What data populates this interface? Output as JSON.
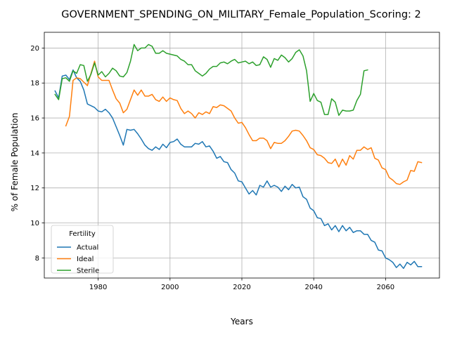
{
  "chart_data": {
    "type": "line",
    "title": "GOVERNMENT_SPENDING_ON_MILITARY_Female_Population_Scoring: 2",
    "xlabel": "Years",
    "ylabel": "% of Female Population",
    "xlim": [
      1965,
      2075
    ],
    "ylim": [
      6.85,
      20.9
    ],
    "xticks": [
      1980,
      2000,
      2020,
      2040,
      2060
    ],
    "yticks": [
      8,
      10,
      12,
      14,
      16,
      18,
      20
    ],
    "grid": true,
    "legend": {
      "title": "Fertility",
      "placement": "lower-left"
    },
    "series": [
      {
        "name": "Actual",
        "color": "#1f77b4",
        "points": [
          [
            1968,
            17.55
          ],
          [
            1969,
            17.15
          ],
          [
            1970,
            18.4
          ],
          [
            1971,
            18.45
          ],
          [
            1972,
            18.2
          ],
          [
            1973,
            18.75
          ],
          [
            1974,
            18.3
          ],
          [
            1975,
            18.1
          ],
          [
            1976,
            17.6
          ],
          [
            1977,
            16.8
          ],
          [
            1978,
            16.7
          ],
          [
            1979,
            16.6
          ],
          [
            1980,
            16.4
          ],
          [
            1981,
            16.35
          ],
          [
            1982,
            16.5
          ],
          [
            1983,
            16.3
          ],
          [
            1984,
            16.0
          ],
          [
            1985,
            15.5
          ],
          [
            1986,
            15.0
          ],
          [
            1987,
            14.45
          ],
          [
            1988,
            15.35
          ],
          [
            1989,
            15.3
          ],
          [
            1990,
            15.35
          ],
          [
            1991,
            15.1
          ],
          [
            1992,
            14.8
          ],
          [
            1993,
            14.45
          ],
          [
            1994,
            14.25
          ],
          [
            1995,
            14.15
          ],
          [
            1996,
            14.35
          ],
          [
            1997,
            14.2
          ],
          [
            1998,
            14.5
          ],
          [
            1999,
            14.3
          ],
          [
            2000,
            14.6
          ],
          [
            2001,
            14.65
          ],
          [
            2002,
            14.8
          ],
          [
            2003,
            14.5
          ],
          [
            2004,
            14.35
          ],
          [
            2005,
            14.35
          ],
          [
            2006,
            14.35
          ],
          [
            2007,
            14.55
          ],
          [
            2008,
            14.5
          ],
          [
            2009,
            14.65
          ],
          [
            2010,
            14.35
          ],
          [
            2011,
            14.4
          ],
          [
            2012,
            14.1
          ],
          [
            2013,
            13.7
          ],
          [
            2014,
            13.8
          ],
          [
            2015,
            13.5
          ],
          [
            2016,
            13.45
          ],
          [
            2017,
            13.05
          ],
          [
            2018,
            12.85
          ],
          [
            2019,
            12.4
          ],
          [
            2020,
            12.35
          ],
          [
            2021,
            12.0
          ],
          [
            2022,
            11.65
          ],
          [
            2023,
            11.85
          ],
          [
            2024,
            11.6
          ],
          [
            2025,
            12.15
          ],
          [
            2026,
            12.05
          ],
          [
            2027,
            12.4
          ],
          [
            2028,
            12.05
          ],
          [
            2029,
            12.15
          ],
          [
            2030,
            12.05
          ],
          [
            2031,
            11.8
          ],
          [
            2032,
            12.1
          ],
          [
            2033,
            11.9
          ],
          [
            2034,
            12.2
          ],
          [
            2035,
            12.0
          ],
          [
            2036,
            12.05
          ],
          [
            2037,
            11.5
          ],
          [
            2038,
            11.35
          ],
          [
            2039,
            10.85
          ],
          [
            2040,
            10.7
          ],
          [
            2041,
            10.3
          ],
          [
            2042,
            10.25
          ],
          [
            2043,
            9.85
          ],
          [
            2044,
            9.95
          ],
          [
            2045,
            9.6
          ],
          [
            2046,
            9.85
          ],
          [
            2047,
            9.5
          ],
          [
            2048,
            9.85
          ],
          [
            2049,
            9.55
          ],
          [
            2050,
            9.75
          ],
          [
            2051,
            9.45
          ],
          [
            2052,
            9.55
          ],
          [
            2053,
            9.55
          ],
          [
            2054,
            9.35
          ],
          [
            2055,
            9.35
          ],
          [
            2056,
            9.0
          ],
          [
            2057,
            8.9
          ],
          [
            2058,
            8.45
          ],
          [
            2059,
            8.4
          ],
          [
            2060,
            8.0
          ],
          [
            2061,
            7.9
          ],
          [
            2062,
            7.75
          ],
          [
            2063,
            7.45
          ],
          [
            2064,
            7.65
          ],
          [
            2065,
            7.4
          ],
          [
            2066,
            7.75
          ],
          [
            2067,
            7.6
          ],
          [
            2068,
            7.8
          ],
          [
            2069,
            7.5
          ],
          [
            2070,
            7.5
          ]
        ]
      },
      {
        "name": "Ideal",
        "color": "#ff7f0e",
        "points": [
          [
            1971,
            15.55
          ],
          [
            1972,
            16.1
          ],
          [
            1973,
            18.15
          ],
          [
            1974,
            18.3
          ],
          [
            1975,
            18.25
          ],
          [
            1976,
            18.05
          ],
          [
            1977,
            17.85
          ],
          [
            1978,
            18.55
          ],
          [
            1979,
            19.25
          ],
          [
            1980,
            18.35
          ],
          [
            1981,
            18.15
          ],
          [
            1982,
            18.15
          ],
          [
            1983,
            18.15
          ],
          [
            1984,
            17.6
          ],
          [
            1985,
            17.1
          ],
          [
            1986,
            16.85
          ],
          [
            1987,
            16.3
          ],
          [
            1988,
            16.5
          ],
          [
            1989,
            17.05
          ],
          [
            1990,
            17.6
          ],
          [
            1991,
            17.3
          ],
          [
            1992,
            17.6
          ],
          [
            1993,
            17.25
          ],
          [
            1994,
            17.25
          ],
          [
            1995,
            17.35
          ],
          [
            1996,
            17.05
          ],
          [
            1997,
            16.95
          ],
          [
            1998,
            17.2
          ],
          [
            1999,
            16.95
          ],
          [
            2000,
            17.15
          ],
          [
            2001,
            17.05
          ],
          [
            2002,
            17.0
          ],
          [
            2003,
            16.55
          ],
          [
            2004,
            16.25
          ],
          [
            2005,
            16.4
          ],
          [
            2006,
            16.25
          ],
          [
            2007,
            16.0
          ],
          [
            2008,
            16.3
          ],
          [
            2009,
            16.2
          ],
          [
            2010,
            16.35
          ],
          [
            2011,
            16.25
          ],
          [
            2012,
            16.65
          ],
          [
            2013,
            16.6
          ],
          [
            2014,
            16.75
          ],
          [
            2015,
            16.7
          ],
          [
            2016,
            16.55
          ],
          [
            2017,
            16.4
          ],
          [
            2018,
            16.0
          ],
          [
            2019,
            15.7
          ],
          [
            2020,
            15.75
          ],
          [
            2021,
            15.45
          ],
          [
            2022,
            15.05
          ],
          [
            2023,
            14.7
          ],
          [
            2024,
            14.7
          ],
          [
            2025,
            14.85
          ],
          [
            2026,
            14.85
          ],
          [
            2027,
            14.7
          ],
          [
            2028,
            14.25
          ],
          [
            2029,
            14.6
          ],
          [
            2030,
            14.55
          ],
          [
            2031,
            14.55
          ],
          [
            2032,
            14.7
          ],
          [
            2033,
            14.95
          ],
          [
            2034,
            15.25
          ],
          [
            2035,
            15.3
          ],
          [
            2036,
            15.25
          ],
          [
            2037,
            15.0
          ],
          [
            2038,
            14.7
          ],
          [
            2039,
            14.3
          ],
          [
            2040,
            14.2
          ],
          [
            2041,
            13.9
          ],
          [
            2042,
            13.85
          ],
          [
            2043,
            13.7
          ],
          [
            2044,
            13.45
          ],
          [
            2045,
            13.4
          ],
          [
            2046,
            13.65
          ],
          [
            2047,
            13.2
          ],
          [
            2048,
            13.65
          ],
          [
            2049,
            13.3
          ],
          [
            2050,
            13.85
          ],
          [
            2051,
            13.65
          ],
          [
            2052,
            14.15
          ],
          [
            2053,
            14.15
          ],
          [
            2054,
            14.35
          ],
          [
            2055,
            14.2
          ],
          [
            2056,
            14.3
          ],
          [
            2057,
            13.7
          ],
          [
            2058,
            13.6
          ],
          [
            2059,
            13.15
          ],
          [
            2060,
            13.05
          ],
          [
            2061,
            12.6
          ],
          [
            2062,
            12.45
          ],
          [
            2063,
            12.25
          ],
          [
            2064,
            12.2
          ],
          [
            2065,
            12.35
          ],
          [
            2066,
            12.45
          ],
          [
            2067,
            13.0
          ],
          [
            2068,
            12.95
          ],
          [
            2069,
            13.5
          ],
          [
            2070,
            13.45
          ]
        ]
      },
      {
        "name": "Sterile",
        "color": "#2ca02c",
        "points": [
          [
            1968,
            17.35
          ],
          [
            1969,
            17.05
          ],
          [
            1970,
            18.25
          ],
          [
            1971,
            18.3
          ],
          [
            1972,
            18.1
          ],
          [
            1973,
            18.7
          ],
          [
            1974,
            18.55
          ],
          [
            1975,
            19.05
          ],
          [
            1976,
            19.0
          ],
          [
            1977,
            18.1
          ],
          [
            1978,
            18.5
          ],
          [
            1979,
            19.15
          ],
          [
            1980,
            18.45
          ],
          [
            1981,
            18.65
          ],
          [
            1982,
            18.35
          ],
          [
            1983,
            18.55
          ],
          [
            1984,
            18.85
          ],
          [
            1985,
            18.7
          ],
          [
            1986,
            18.4
          ],
          [
            1987,
            18.35
          ],
          [
            1988,
            18.6
          ],
          [
            1989,
            19.25
          ],
          [
            1990,
            20.2
          ],
          [
            1991,
            19.85
          ],
          [
            1992,
            20.0
          ],
          [
            1993,
            20.0
          ],
          [
            1994,
            20.2
          ],
          [
            1995,
            20.1
          ],
          [
            1996,
            19.7
          ],
          [
            1997,
            19.7
          ],
          [
            1998,
            19.85
          ],
          [
            1999,
            19.7
          ],
          [
            2000,
            19.65
          ],
          [
            2001,
            19.6
          ],
          [
            2002,
            19.55
          ],
          [
            2003,
            19.35
          ],
          [
            2004,
            19.25
          ],
          [
            2005,
            19.05
          ],
          [
            2006,
            19.05
          ],
          [
            2007,
            18.7
          ],
          [
            2008,
            18.55
          ],
          [
            2009,
            18.4
          ],
          [
            2010,
            18.55
          ],
          [
            2011,
            18.8
          ],
          [
            2012,
            18.95
          ],
          [
            2013,
            18.95
          ],
          [
            2014,
            19.15
          ],
          [
            2015,
            19.2
          ],
          [
            2016,
            19.1
          ],
          [
            2017,
            19.25
          ],
          [
            2018,
            19.35
          ],
          [
            2019,
            19.15
          ],
          [
            2020,
            19.2
          ],
          [
            2021,
            19.25
          ],
          [
            2022,
            19.1
          ],
          [
            2023,
            19.2
          ],
          [
            2024,
            19.0
          ],
          [
            2025,
            19.05
          ],
          [
            2026,
            19.5
          ],
          [
            2027,
            19.35
          ],
          [
            2028,
            18.9
          ],
          [
            2029,
            19.4
          ],
          [
            2030,
            19.3
          ],
          [
            2031,
            19.6
          ],
          [
            2032,
            19.45
          ],
          [
            2033,
            19.2
          ],
          [
            2034,
            19.4
          ],
          [
            2035,
            19.75
          ],
          [
            2036,
            19.9
          ],
          [
            2037,
            19.55
          ],
          [
            2038,
            18.7
          ],
          [
            2039,
            16.95
          ],
          [
            2040,
            17.4
          ],
          [
            2041,
            17.0
          ],
          [
            2042,
            16.9
          ],
          [
            2043,
            16.2
          ],
          [
            2044,
            16.2
          ],
          [
            2045,
            17.1
          ],
          [
            2046,
            16.9
          ],
          [
            2047,
            16.15
          ],
          [
            2048,
            16.45
          ],
          [
            2049,
            16.4
          ],
          [
            2050,
            16.4
          ],
          [
            2051,
            16.45
          ],
          [
            2052,
            17.0
          ],
          [
            2053,
            17.35
          ],
          [
            2054,
            18.7
          ],
          [
            2055,
            18.75
          ]
        ]
      }
    ]
  }
}
